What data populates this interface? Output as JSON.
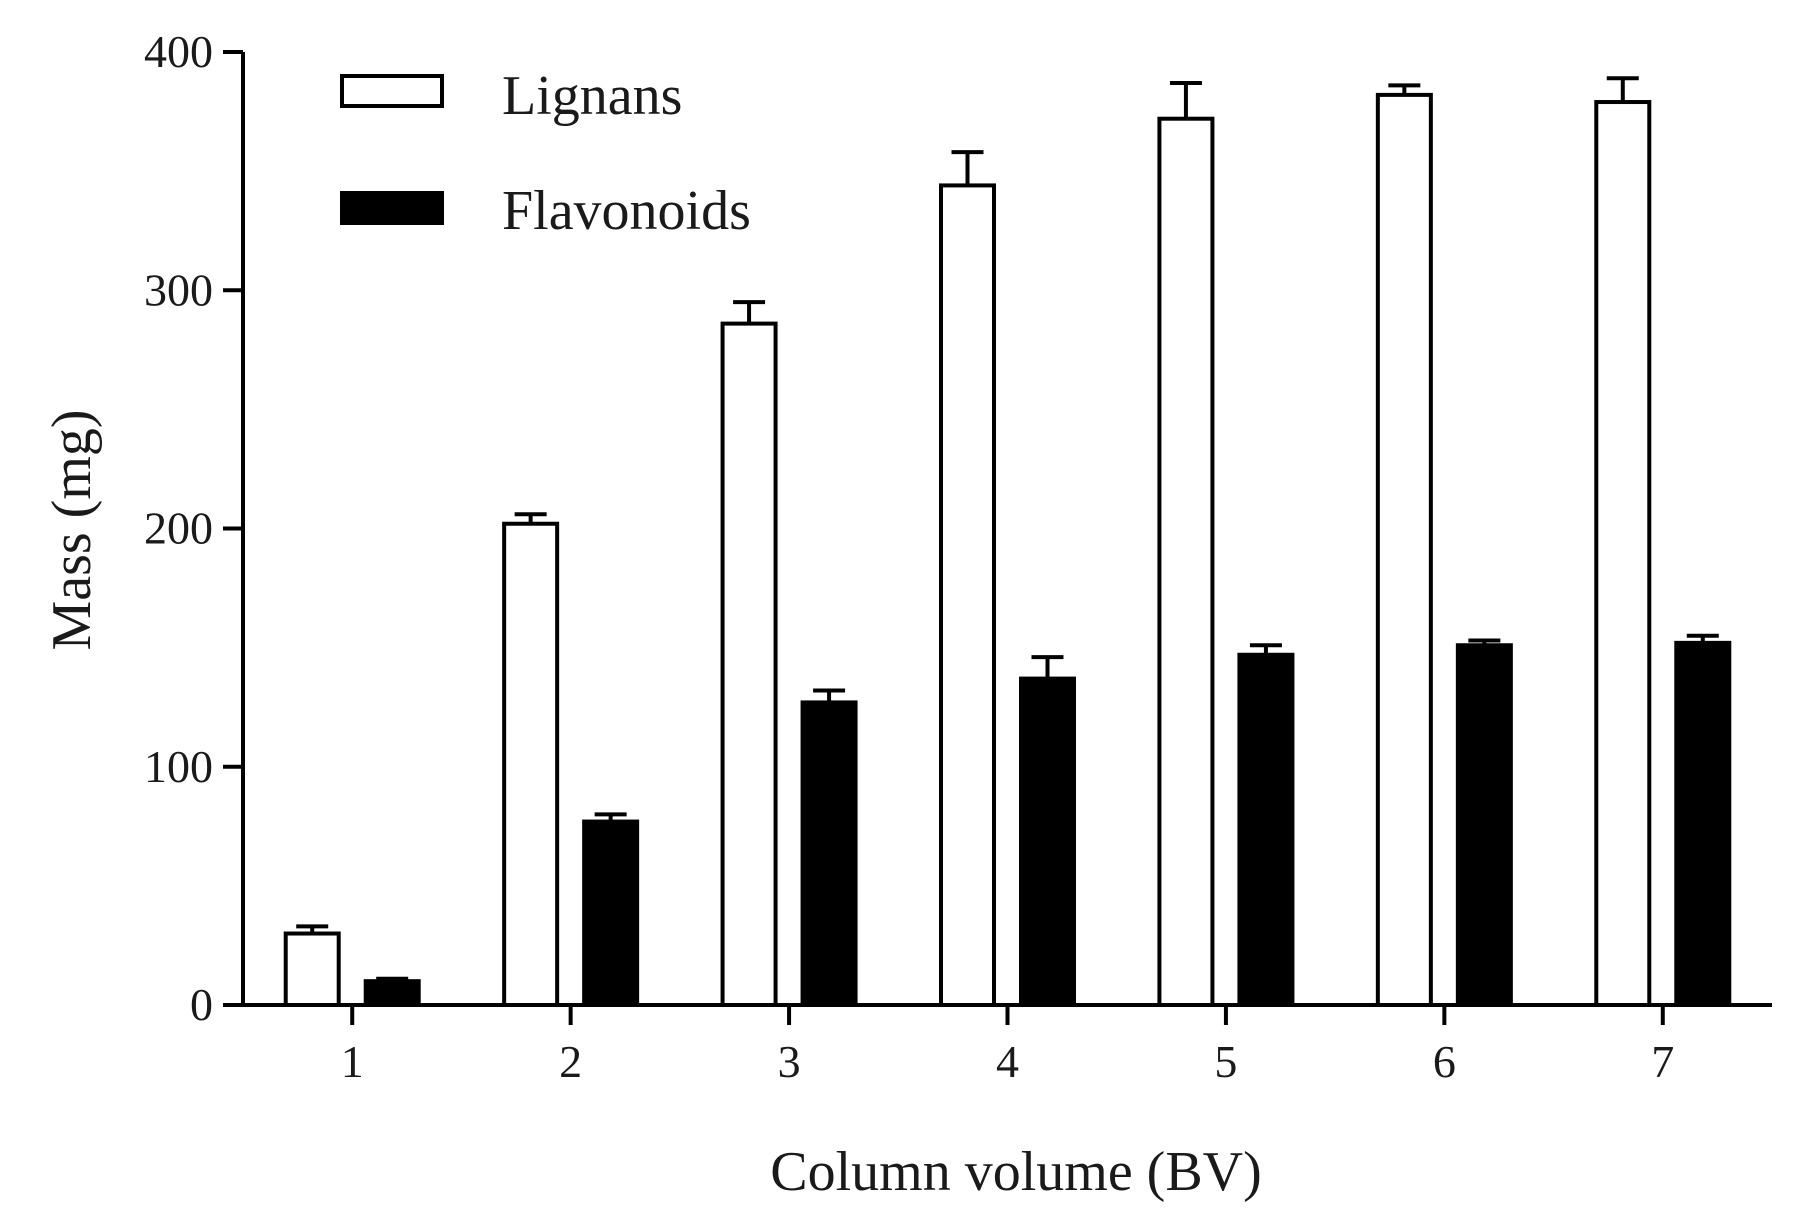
{
  "chart_data": {
    "type": "bar",
    "title": "",
    "xlabel": "Column volume (BV)",
    "ylabel": "Mass (mg)",
    "categories": [
      "1",
      "2",
      "3",
      "4",
      "5",
      "6",
      "7"
    ],
    "ylim": [
      0,
      400
    ],
    "yticks": [
      "0",
      "100",
      "200",
      "300",
      "400"
    ],
    "grid": false,
    "legend_position": "top-left",
    "series": [
      {
        "name": "Lignans",
        "values": [
          30,
          202,
          286,
          344,
          372,
          382,
          379
        ],
        "errors": [
          3,
          4,
          9,
          14,
          15,
          4,
          10
        ],
        "fill": "#ffffff",
        "stroke": "#000000"
      },
      {
        "name": "Flavonoids",
        "values": [
          10,
          77,
          127,
          137,
          147,
          151,
          152
        ],
        "errors": [
          1,
          3,
          5,
          9,
          4,
          2,
          3
        ],
        "fill": "#000000",
        "stroke": "#000000"
      }
    ]
  }
}
